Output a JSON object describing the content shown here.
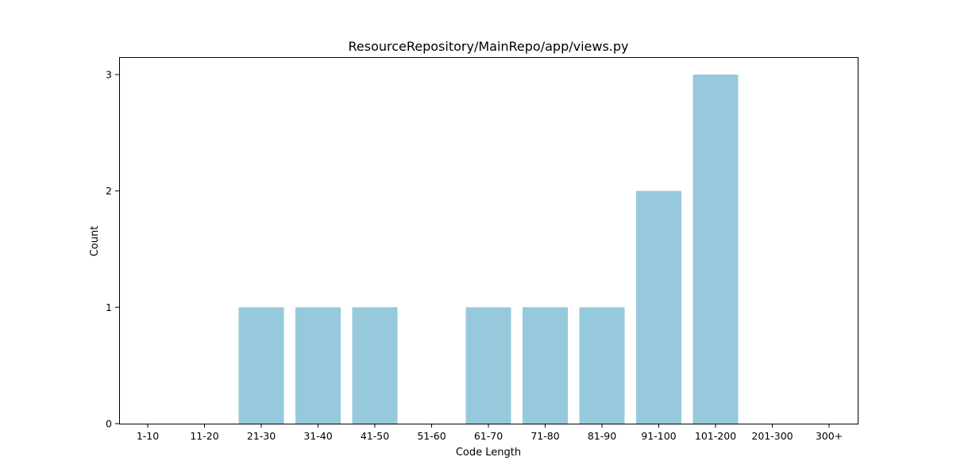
{
  "chart_data": {
    "type": "bar",
    "title": "ResourceRepository/MainRepo/app/views.py",
    "xlabel": "Code Length",
    "ylabel": "Count",
    "categories": [
      "1-10",
      "11-20",
      "21-30",
      "31-40",
      "41-50",
      "51-60",
      "61-70",
      "71-80",
      "81-90",
      "91-100",
      "101-200",
      "201-300",
      "300+"
    ],
    "values": [
      0,
      0,
      1,
      1,
      1,
      0,
      1,
      1,
      1,
      2,
      3,
      0,
      0
    ],
    "ylim": [
      0,
      3.15
    ],
    "yticks": [
      0,
      1,
      2,
      3
    ],
    "bar_color": "#96c9dc",
    "grid": false
  }
}
